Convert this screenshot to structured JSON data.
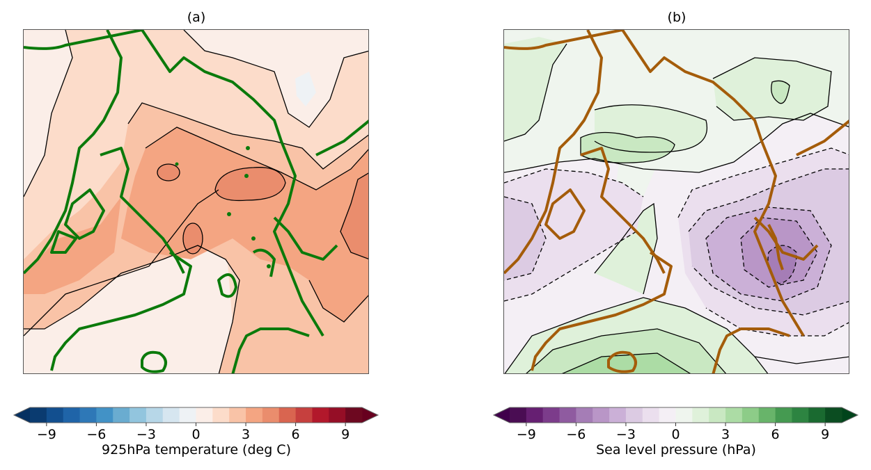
{
  "chart_data": [
    {
      "type": "heatmap",
      "panel": "(a)",
      "title": "(a)",
      "description": "Filled contour map (polar projection) of 925hPa temperature anomaly with black contour lines and green coastlines",
      "colorbar": {
        "label": "925hPa temperature (deg C)",
        "ticks": [
          -9,
          -6,
          -3,
          0,
          3,
          6,
          9
        ],
        "tick_labels": [
          "−9",
          "−6",
          "−3",
          "0",
          "3",
          "6",
          "9"
        ],
        "levels": [
          -10,
          -9,
          -8,
          -7,
          -6,
          -5,
          -4,
          -3,
          -2,
          -1,
          0,
          1,
          2,
          3,
          4,
          5,
          6,
          7,
          8,
          9,
          10
        ],
        "extend": "both",
        "colormap": "RdBu_r",
        "colors": [
          "#0a3b70",
          "#124f8f",
          "#1f64a8",
          "#2e78b7",
          "#4292c6",
          "#6aacd0",
          "#92c5de",
          "#b7d7e8",
          "#d6e6f0",
          "#eef2f5",
          "#fbeee8",
          "#fcdcca",
          "#f9c3a7",
          "#f4a582",
          "#ea8d6d",
          "#d96550",
          "#c6403e",
          "#b2182b",
          "#950e26",
          "#6d0820"
        ],
        "under_color": "#053061",
        "over_color": "#67001f"
      },
      "field_range_estimate": [
        -1,
        5
      ],
      "coastline_color": "#0b7a0b",
      "contour_line_color": "#000000"
    },
    {
      "type": "heatmap",
      "panel": "(b)",
      "title": "(b)",
      "description": "Filled contour map (polar projection) of sea level pressure anomaly with solid (positive) and dashed (negative) black contours and brown coastlines",
      "colorbar": {
        "label": "Sea level pressure (hPa)",
        "ticks": [
          -9,
          -6,
          -3,
          0,
          3,
          6,
          9
        ],
        "tick_labels": [
          "−9",
          "−6",
          "−3",
          "0",
          "3",
          "6",
          "9"
        ],
        "levels": [
          -10,
          -9,
          -8,
          -7,
          -6,
          -5,
          -4,
          -3,
          -2,
          -1,
          0,
          1,
          2,
          3,
          4,
          5,
          6,
          7,
          8,
          9,
          10
        ],
        "extend": "both",
        "colormap": "PRGn",
        "colors": [
          "#4a0d53",
          "#661f72",
          "#7c3c8b",
          "#8f5ba0",
          "#a57db6",
          "#b996c7",
          "#cbb0d7",
          "#dccbe3",
          "#ebdfee",
          "#f4eff5",
          "#eff5ee",
          "#dff1da",
          "#c9e8c2",
          "#acdca5",
          "#8dcc88",
          "#68b46a",
          "#459a51",
          "#2d8441",
          "#1a6a30",
          "#0b4d21"
        ],
        "under_color": "#40004b",
        "over_color": "#00441b"
      },
      "field_range_estimate": [
        -6,
        4
      ],
      "coastline_color": "#a45c0a",
      "contour_line_color": "#000000"
    }
  ],
  "panels": {
    "a": {
      "title": "(a)",
      "cbar_label": "925hPa temperature (deg C)"
    },
    "b": {
      "title": "(b)",
      "cbar_label": "Sea level pressure (hPa)"
    }
  },
  "ticks": [
    "−9",
    "−6",
    "−3",
    "0",
    "3",
    "6",
    "9"
  ]
}
